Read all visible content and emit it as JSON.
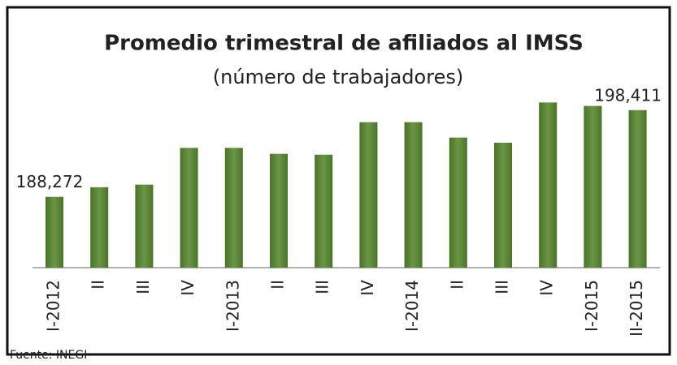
{
  "chart_data": {
    "type": "bar",
    "title": "Promedio trimestral de afiliados al IMSS",
    "subtitle": "(número de trabajadores)",
    "categories": [
      "I-2012",
      "II",
      "III",
      "IV",
      "I-2013",
      "II",
      "III",
      "IV",
      "I-2014",
      "II",
      "III",
      "IV",
      "I-2015",
      "II-2015"
    ],
    "values": [
      188272,
      189400,
      189700,
      194000,
      194000,
      193300,
      193200,
      197000,
      197000,
      195200,
      194600,
      199300,
      198900,
      198411
    ],
    "value_labels": [
      "188,272",
      null,
      null,
      null,
      null,
      null,
      null,
      null,
      null,
      null,
      null,
      null,
      null,
      "198,411"
    ],
    "color": "#55862b",
    "ylim": [
      180000,
      200000
    ],
    "source": "Fuente: INEGI"
  }
}
